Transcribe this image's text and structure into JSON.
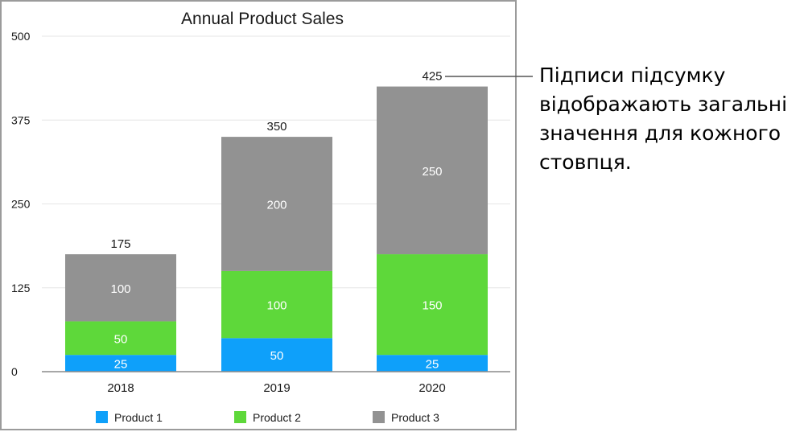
{
  "chart_data": {
    "type": "bar",
    "stacked": true,
    "title": "Annual Product Sales",
    "categories": [
      "2018",
      "2019",
      "2020"
    ],
    "series": [
      {
        "name": "Product 1",
        "values": [
          25,
          50,
          25
        ],
        "color": "#0ea0fa"
      },
      {
        "name": "Product 2",
        "values": [
          50,
          100,
          150
        ],
        "color": "#5ed83a"
      },
      {
        "name": "Product 3",
        "values": [
          100,
          200,
          250
        ],
        "color": "#929292"
      }
    ],
    "totals": [
      175,
      350,
      425
    ],
    "yticks": [
      0,
      125,
      250,
      375,
      500
    ],
    "ylim": [
      0,
      500
    ],
    "grid": true,
    "legend_position": "bottom",
    "value_labels": true,
    "total_labels": true
  },
  "callout": {
    "lines": [
      "Підписи підсумку",
      "відображають загальні",
      "значення для кожного",
      "стовпця."
    ]
  }
}
